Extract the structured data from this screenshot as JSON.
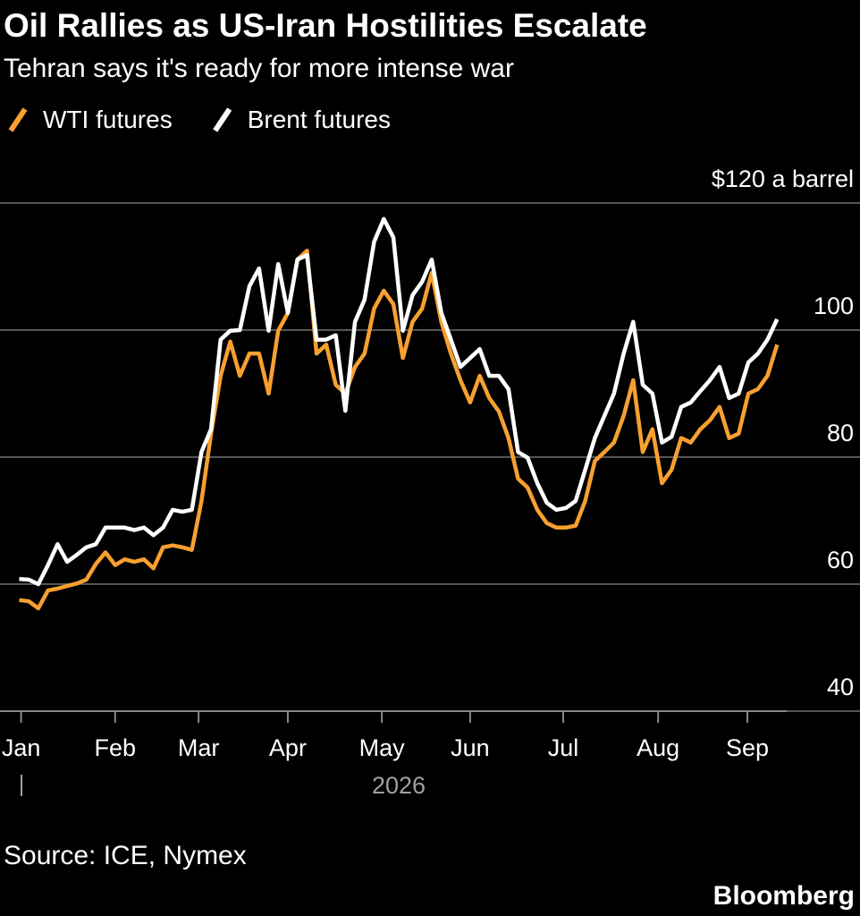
{
  "chart_data": {
    "type": "line",
    "title": "Oil Rallies as US-Iran Hostilities Escalate",
    "subtitle": "Tehran says it's ready for more intense war",
    "xlabel": "2026",
    "source": "Source: ICE, Nymex",
    "brand": "Bloomberg",
    "legend": "top-left",
    "grid": true,
    "xlim": [
      -2,
      80
    ],
    "xticks": [
      {
        "value": 0.2,
        "label": "Jan"
      },
      {
        "value": 10,
        "label": "Feb"
      },
      {
        "value": 18.7,
        "label": "Mar"
      },
      {
        "value": 28,
        "label": "Apr"
      },
      {
        "value": 37.8,
        "label": "May"
      },
      {
        "value": 47,
        "label": "Jun"
      },
      {
        "value": 56.7,
        "label": "Jul"
      },
      {
        "value": 66.6,
        "label": "Aug"
      },
      {
        "value": 75.9,
        "label": "Sep"
      }
    ],
    "ylim": [
      40,
      120
    ],
    "yticks": [
      40,
      60,
      80,
      100,
      {
        "value": 120,
        "label": "$120 a barrel"
      }
    ],
    "series": [
      {
        "name": "WTI futures",
        "color": "#f7a030",
        "values": [
          57.5,
          57.3,
          56.2,
          59.0,
          59.3,
          59.7,
          60.1,
          60.7,
          63.2,
          65.0,
          63.0,
          63.9,
          63.5,
          63.9,
          62.5,
          65.8,
          66.1,
          65.8,
          65.4,
          73.1,
          83.7,
          92.8,
          98.2,
          92.8,
          96.3,
          96.3,
          90.0,
          99.9,
          102.7,
          111.1,
          112.5,
          96.3,
          97.7,
          91.4,
          90.0,
          94.2,
          96.3,
          103.4,
          106.2,
          104.1,
          95.6,
          101.3,
          103.4,
          109.0,
          101.3,
          96.3,
          92.1,
          88.6,
          92.8,
          89.3,
          87.2,
          83.0,
          76.6,
          75.2,
          71.7,
          69.6,
          68.9,
          68.9,
          69.2,
          73.1,
          79.4,
          80.8,
          82.3,
          86.5,
          92.1,
          80.8,
          84.4,
          75.9,
          78.0,
          83.0,
          82.3,
          84.4,
          85.8,
          87.9,
          83.0,
          83.7,
          90.0,
          90.7,
          92.8,
          97.7
        ]
      },
      {
        "name": "Brent futures",
        "color": "#ffffff",
        "values": [
          60.8,
          60.7,
          60.0,
          63.0,
          66.3,
          63.5,
          64.6,
          65.8,
          66.3,
          68.9,
          68.9,
          68.9,
          68.5,
          68.9,
          67.7,
          68.9,
          71.7,
          71.4,
          71.7,
          80.8,
          84.4,
          98.5,
          99.9,
          100.0,
          106.9,
          109.7,
          99.9,
          110.4,
          102.7,
          111.1,
          111.8,
          98.5,
          98.5,
          99.2,
          87.3,
          101.3,
          104.8,
          113.9,
          117.5,
          114.6,
          99.9,
          105.5,
          107.6,
          111.1,
          102.7,
          98.5,
          94.2,
          95.6,
          97.0,
          92.8,
          92.8,
          90.7,
          80.8,
          79.9,
          75.9,
          72.8,
          71.7,
          72.0,
          73.1,
          78.0,
          83.0,
          86.5,
          90.0,
          96.3,
          101.3,
          91.4,
          90.0,
          82.3,
          83.2,
          87.9,
          88.6,
          90.4,
          92.1,
          94.2,
          89.3,
          90.0,
          94.9,
          96.3,
          98.5,
          101.7
        ]
      }
    ]
  }
}
